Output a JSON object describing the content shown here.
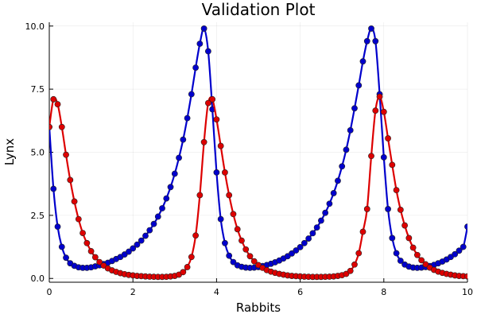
{
  "chart_data": {
    "type": "line",
    "title": "Validation Plot",
    "xlabel": "Rabbits",
    "ylabel": "Lynx",
    "xlim": [
      0,
      10
    ],
    "ylim": [
      -0.15,
      10.15
    ],
    "x_ticks": [
      0,
      2,
      4,
      6,
      8,
      10
    ],
    "y_ticks": [
      0.0,
      2.5,
      5.0,
      7.5,
      10.0
    ],
    "x_tick_labels": [
      "0",
      "2",
      "4",
      "6",
      "8",
      "10"
    ],
    "y_tick_labels": [
      "0.0",
      "2.5",
      "5.0",
      "7.5",
      "10.0"
    ],
    "grid": true,
    "legend": "none",
    "series": [
      {
        "color": "#0000cc",
        "x": [
          0.0,
          0.1,
          0.2,
          0.3,
          0.4,
          0.5,
          0.6,
          0.7,
          0.8,
          0.9,
          1.0,
          1.1,
          1.2,
          1.3,
          1.4,
          1.5,
          1.6,
          1.7,
          1.8,
          1.9,
          2.0,
          2.1,
          2.2,
          2.3,
          2.4,
          2.5,
          2.6,
          2.7,
          2.8,
          2.9,
          3.0,
          3.1,
          3.2,
          3.3,
          3.4,
          3.5,
          3.6,
          3.7,
          3.8,
          3.9,
          4.0,
          4.1,
          4.2,
          4.3,
          4.4,
          4.5,
          4.6,
          4.7,
          4.8,
          4.9,
          5.0,
          5.1,
          5.2,
          5.3,
          5.4,
          5.5,
          5.6,
          5.7,
          5.8,
          5.9,
          6.0,
          6.1,
          6.2,
          6.3,
          6.4,
          6.5,
          6.6,
          6.7,
          6.8,
          6.9,
          7.0,
          7.1,
          7.2,
          7.3,
          7.4,
          7.5,
          7.6,
          7.7,
          7.8,
          7.9,
          8.0,
          8.1,
          8.2,
          8.3,
          8.4,
          8.5,
          8.6,
          8.7,
          8.8,
          8.9,
          9.0,
          9.1,
          9.2,
          9.3,
          9.4,
          9.5,
          9.6,
          9.7,
          9.8,
          9.9,
          10.0
        ],
        "values": [
          6.0,
          3.55,
          2.05,
          1.25,
          0.82,
          0.6,
          0.5,
          0.44,
          0.42,
          0.42,
          0.44,
          0.48,
          0.52,
          0.57,
          0.62,
          0.69,
          0.77,
          0.85,
          0.95,
          1.06,
          1.19,
          1.34,
          1.5,
          1.69,
          1.91,
          2.16,
          2.45,
          2.78,
          3.17,
          3.62,
          4.15,
          4.78,
          5.5,
          6.35,
          7.3,
          8.35,
          9.3,
          9.9,
          9.0,
          6.7,
          4.2,
          2.35,
          1.4,
          0.9,
          0.65,
          0.52,
          0.46,
          0.43,
          0.42,
          0.43,
          0.45,
          0.49,
          0.53,
          0.58,
          0.64,
          0.71,
          0.79,
          0.88,
          0.99,
          1.11,
          1.24,
          1.4,
          1.58,
          1.79,
          2.02,
          2.29,
          2.6,
          2.96,
          3.38,
          3.87,
          4.44,
          5.1,
          5.87,
          6.74,
          7.65,
          8.6,
          9.4,
          9.9,
          9.4,
          7.3,
          4.8,
          2.75,
          1.6,
          1.0,
          0.7,
          0.55,
          0.47,
          0.43,
          0.42,
          0.43,
          0.45,
          0.49,
          0.54,
          0.6,
          0.67,
          0.75,
          0.85,
          0.96,
          1.1,
          1.25,
          2.05
        ]
      },
      {
        "color": "#dd0000",
        "x": [
          0.0,
          0.1,
          0.2,
          0.3,
          0.4,
          0.5,
          0.6,
          0.7,
          0.8,
          0.9,
          1.0,
          1.1,
          1.2,
          1.3,
          1.4,
          1.5,
          1.6,
          1.7,
          1.8,
          1.9,
          2.0,
          2.1,
          2.2,
          2.3,
          2.4,
          2.5,
          2.6,
          2.7,
          2.8,
          2.9,
          3.0,
          3.1,
          3.2,
          3.3,
          3.4,
          3.5,
          3.6,
          3.7,
          3.8,
          3.9,
          4.0,
          4.1,
          4.2,
          4.3,
          4.4,
          4.5,
          4.6,
          4.7,
          4.8,
          4.9,
          5.0,
          5.1,
          5.2,
          5.3,
          5.4,
          5.5,
          5.6,
          5.7,
          5.8,
          5.9,
          6.0,
          6.1,
          6.2,
          6.3,
          6.4,
          6.5,
          6.6,
          6.7,
          6.8,
          6.9,
          7.0,
          7.1,
          7.2,
          7.3,
          7.4,
          7.5,
          7.6,
          7.7,
          7.8,
          7.9,
          8.0,
          8.1,
          8.2,
          8.3,
          8.4,
          8.5,
          8.6,
          8.7,
          8.8,
          8.9,
          9.0,
          9.1,
          9.2,
          9.3,
          9.4,
          9.5,
          9.6,
          9.7,
          9.8,
          9.9,
          10.0
        ],
        "values": [
          6.0,
          7.1,
          6.9,
          6.0,
          4.9,
          3.9,
          3.05,
          2.35,
          1.8,
          1.4,
          1.08,
          0.84,
          0.65,
          0.51,
          0.4,
          0.32,
          0.26,
          0.21,
          0.17,
          0.14,
          0.12,
          0.1,
          0.09,
          0.08,
          0.07,
          0.065,
          0.06,
          0.06,
          0.065,
          0.08,
          0.1,
          0.15,
          0.25,
          0.45,
          0.85,
          1.7,
          3.3,
          5.4,
          6.95,
          7.1,
          6.3,
          5.25,
          4.2,
          3.3,
          2.55,
          1.95,
          1.5,
          1.15,
          0.88,
          0.68,
          0.53,
          0.42,
          0.33,
          0.27,
          0.22,
          0.18,
          0.15,
          0.12,
          0.1,
          0.09,
          0.08,
          0.07,
          0.065,
          0.06,
          0.06,
          0.06,
          0.065,
          0.07,
          0.08,
          0.1,
          0.13,
          0.18,
          0.3,
          0.55,
          1.0,
          1.85,
          2.75,
          4.85,
          6.65,
          7.2,
          6.6,
          5.55,
          4.5,
          3.5,
          2.72,
          2.1,
          1.6,
          1.22,
          0.93,
          0.72,
          0.56,
          0.43,
          0.34,
          0.27,
          0.22,
          0.18,
          0.15,
          0.12,
          0.1,
          0.09,
          0.08
        ]
      }
    ]
  }
}
